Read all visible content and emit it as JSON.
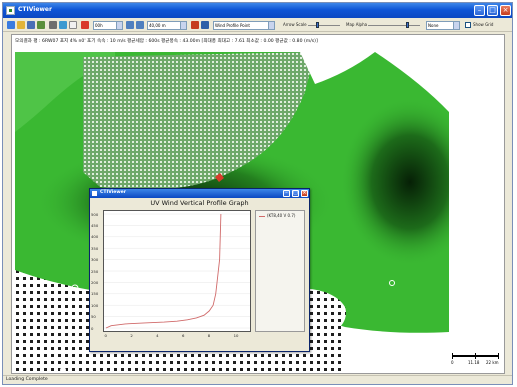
{
  "window": {
    "title": "CTIViewer"
  },
  "toolbar": {
    "time_combo": "00h",
    "height_combo": "40,00 m",
    "overlay_combo": "Wind Profile Point",
    "arrow_scale_label": "Arrow Scale",
    "map_alpha_label": "Map Alpha",
    "none_combo": "None",
    "show_grid_label": "Show Grid"
  },
  "info_line": "모의결과 평 : 6RW07  포지 4% n0'  포기 속속 : 10 m/s  평균세압 : 600s  평균풍속 : 43.00m  [최대풍 최대고 : 7.61  최소값 : 0.00  평균값 : 0.80 (m/s)]",
  "scale_bar": {
    "labels": [
      "0",
      "11.18",
      "22 km"
    ]
  },
  "status": {
    "text": "Loading Complete"
  },
  "popup": {
    "window_title": "CTIViewer",
    "chart_title": "UV Wind Vertical Profile Graph",
    "legend_label": "(KT8,40 V 0.7)"
  },
  "chart_data": {
    "type": "line",
    "title": "UV Wind Vertical Profile Graph",
    "xlabel": "",
    "ylabel": "",
    "xlim": [
      0,
      11
    ],
    "ylim": [
      0,
      500
    ],
    "x_ticks": [
      "0",
      "2",
      "4",
      "6",
      "8",
      "10"
    ],
    "y_ticks": [
      "0",
      "50",
      "100",
      "150",
      "200",
      "250",
      "300",
      "350",
      "400",
      "450",
      "500"
    ],
    "series": [
      {
        "name": "(KT8,40 V 0.7)",
        "color": "#d06a6a",
        "x": [
          0.0,
          0.4,
          1.5,
          3.0,
          4.5,
          5.5,
          6.3,
          7.0,
          7.6,
          8.0,
          8.3,
          8.5,
          8.6,
          8.7,
          8.8,
          8.85,
          8.9
        ],
        "y": [
          0,
          10,
          18,
          22,
          26,
          30,
          36,
          44,
          56,
          75,
          100,
          150,
          200,
          250,
          300,
          400,
          500
        ]
      }
    ]
  },
  "colors": {
    "map_green": "#3ab832",
    "map_dark": "#0d3a0d",
    "curve": "#d06a6a",
    "titlebar": "#0b48c2"
  }
}
